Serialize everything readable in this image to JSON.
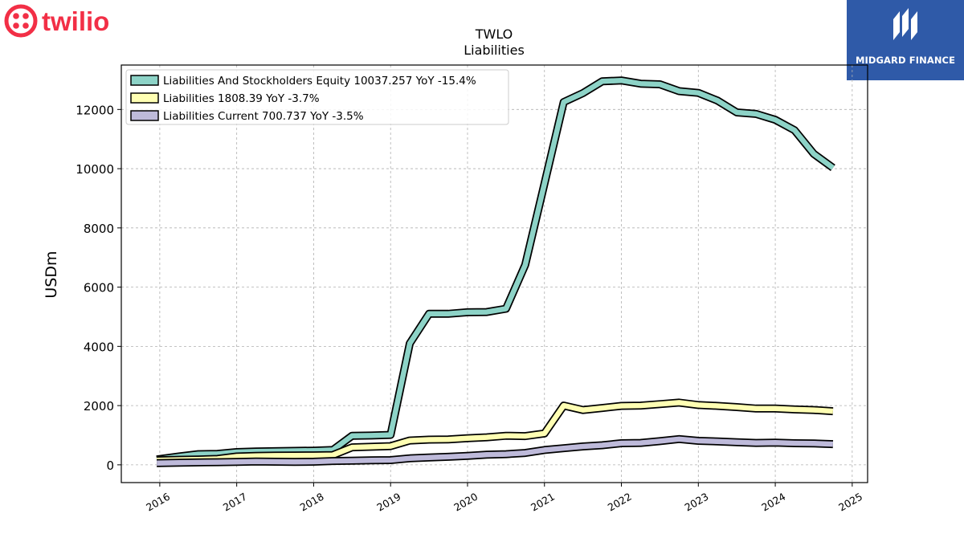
{
  "brand": {
    "company_logo": "twilio",
    "publisher": "MIDGARD FINANCE"
  },
  "chart_data": {
    "type": "line",
    "title": "TWLO",
    "subtitle": "Liabilities",
    "ylabel": "USDm",
    "xlabel": "",
    "ylim": [
      -600,
      13500
    ],
    "xlim": [
      2015.5,
      2025.2
    ],
    "yticks": [
      0,
      2000,
      4000,
      6000,
      8000,
      10000,
      12000
    ],
    "xticks": [
      "2016",
      "2017",
      "2018",
      "2019",
      "2020",
      "2021",
      "2022",
      "2023",
      "2024",
      "2025"
    ],
    "grid": true,
    "legend_position": "top-left",
    "x": [
      2015.96,
      2016.25,
      2016.5,
      2016.75,
      2017.0,
      2017.25,
      2017.5,
      2017.75,
      2018.0,
      2018.25,
      2018.5,
      2018.75,
      2019.0,
      2019.25,
      2019.5,
      2019.75,
      2020.0,
      2020.25,
      2020.5,
      2020.75,
      2021.0,
      2021.25,
      2021.5,
      2021.75,
      2022.0,
      2022.25,
      2022.5,
      2022.75,
      2023.0,
      2023.25,
      2023.5,
      2023.75,
      2024.0,
      2024.25,
      2024.5,
      2024.75
    ],
    "series": [
      {
        "name": "Liabilities And Stockholders Equity",
        "legend_label": "Liabilities And Stockholders Equity  10037.257 YoY -15.4%",
        "color": "#8dd3c7",
        "values": [
          180,
          280,
          360,
          370,
          430,
          450,
          460,
          470,
          480,
          500,
          980,
          990,
          1010,
          4100,
          5100,
          5100,
          5150,
          5160,
          5270,
          6750,
          9500,
          12250,
          12550,
          12950,
          12980,
          12870,
          12850,
          12620,
          12560,
          12300,
          11900,
          11850,
          11650,
          11300,
          10500,
          10030
        ]
      },
      {
        "name": "Liabilities",
        "legend_label": "Liabilities  1808.39 YoY -3.7%",
        "color": "#ffffb3",
        "values": [
          150,
          170,
          180,
          200,
          280,
          300,
          310,
          315,
          320,
          330,
          590,
          610,
          630,
          820,
          850,
          860,
          900,
          930,
          980,
          970,
          1060,
          2000,
          1850,
          1920,
          1990,
          2000,
          2050,
          2100,
          2020,
          1990,
          1950,
          1900,
          1900,
          1870,
          1850,
          1810
        ]
      },
      {
        "name": "Liabilities Current",
        "legend_label": "Liabilities Current  700.737 YoY -3.5%",
        "color": "#bebada",
        "values": [
          60,
          70,
          80,
          90,
          100,
          110,
          105,
          100,
          105,
          130,
          140,
          150,
          160,
          220,
          250,
          270,
          300,
          340,
          360,
          400,
          500,
          560,
          620,
          660,
          730,
          740,
          800,
          870,
          810,
          790,
          760,
          740,
          750,
          730,
          720,
          700
        ]
      }
    ]
  }
}
